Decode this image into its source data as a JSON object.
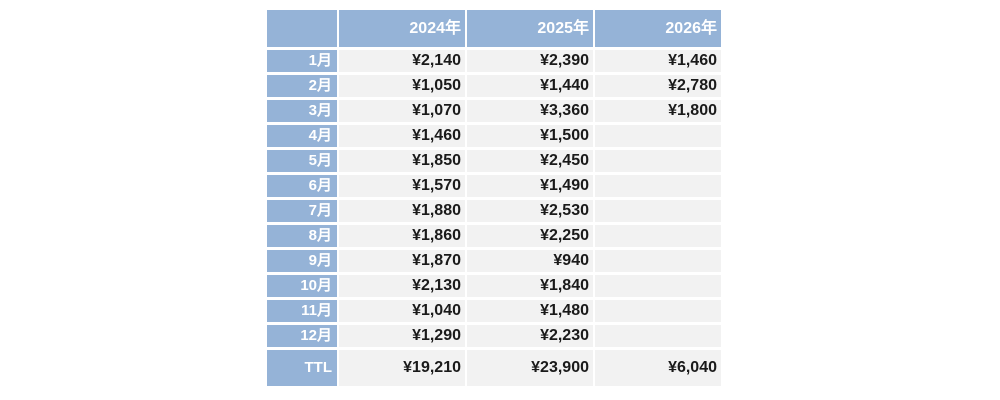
{
  "table": {
    "corner": "",
    "columns": [
      "",
      "2024年",
      "2025年",
      "2026年"
    ],
    "rows": [
      {
        "label": "1月",
        "values": [
          "¥2,140",
          "¥2,390",
          "¥1,460"
        ]
      },
      {
        "label": "2月",
        "values": [
          "¥1,050",
          "¥1,440",
          "¥2,780"
        ]
      },
      {
        "label": "3月",
        "values": [
          "¥1,070",
          "¥3,360",
          "¥1,800"
        ]
      },
      {
        "label": "4月",
        "values": [
          "¥1,460",
          "¥1,500",
          ""
        ]
      },
      {
        "label": "5月",
        "values": [
          "¥1,850",
          "¥2,450",
          ""
        ]
      },
      {
        "label": "6月",
        "values": [
          "¥1,570",
          "¥1,490",
          ""
        ]
      },
      {
        "label": "7月",
        "values": [
          "¥1,880",
          "¥2,530",
          ""
        ]
      },
      {
        "label": "8月",
        "values": [
          "¥1,860",
          "¥2,250",
          ""
        ]
      },
      {
        "label": "9月",
        "values": [
          "¥1,870",
          "¥940",
          ""
        ]
      },
      {
        "label": "10月",
        "values": [
          "¥2,130",
          "¥1,840",
          ""
        ]
      },
      {
        "label": "11月",
        "values": [
          "¥1,040",
          "¥1,480",
          ""
        ]
      },
      {
        "label": "12月",
        "values": [
          "¥1,290",
          "¥2,230",
          ""
        ]
      }
    ],
    "total": {
      "label": "TTL",
      "values": [
        "¥19,210",
        "¥23,900",
        "¥6,040"
      ]
    }
  },
  "chart_data": {
    "type": "table",
    "title": "",
    "categories": [
      "1月",
      "2月",
      "3月",
      "4月",
      "5月",
      "6月",
      "7月",
      "8月",
      "9月",
      "10月",
      "11月",
      "12月",
      "TTL"
    ],
    "series": [
      {
        "name": "2024年",
        "values": [
          2140,
          1050,
          1070,
          1460,
          1850,
          1570,
          1880,
          1860,
          1870,
          2130,
          1040,
          1290,
          19210
        ]
      },
      {
        "name": "2025年",
        "values": [
          2390,
          1440,
          3360,
          1500,
          2450,
          1490,
          2530,
          2250,
          940,
          1840,
          1480,
          2230,
          23900
        ]
      },
      {
        "name": "2026年",
        "values": [
          1460,
          2780,
          1800,
          null,
          null,
          null,
          null,
          null,
          null,
          null,
          null,
          null,
          6040
        ]
      }
    ],
    "currency_symbol": "¥"
  },
  "colors": {
    "header_bg": "#95b3d7",
    "cell_bg": "#f2f2f2",
    "header_text": "#ffffff",
    "value_text": "#1a1a1a",
    "gridline": "#ffffff"
  }
}
